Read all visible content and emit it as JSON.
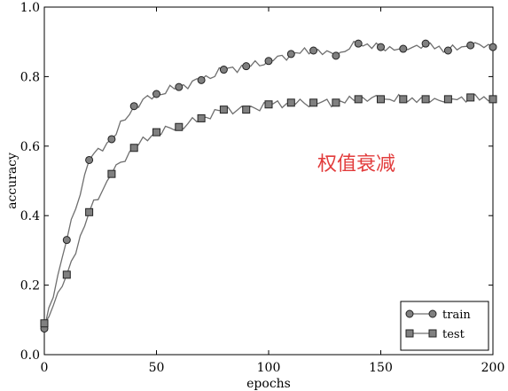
{
  "chart_data": {
    "type": "line",
    "xlabel": "epochs",
    "ylabel": "accuracy",
    "xlim": [
      0,
      200
    ],
    "ylim": [
      0.0,
      1.0
    ],
    "xticks": [
      "0",
      "50",
      "100",
      "150",
      "200"
    ],
    "yticks": [
      "0.0",
      "0.2",
      "0.4",
      "0.6",
      "0.8",
      "1.0"
    ],
    "grid": false,
    "legend_position": "bottom-right",
    "annotation": {
      "text": "权值衰减",
      "color": "#e23b3b"
    },
    "series": [
      {
        "name": "train",
        "marker": "circle",
        "line_color": "#6f6f6f",
        "marker_color": "#808080",
        "x": [
          0,
          10,
          20,
          30,
          40,
          50,
          60,
          70,
          80,
          90,
          100,
          110,
          120,
          130,
          140,
          150,
          160,
          170,
          180,
          190,
          200
        ],
        "y": [
          0.075,
          0.33,
          0.56,
          0.62,
          0.715,
          0.75,
          0.77,
          0.79,
          0.82,
          0.83,
          0.845,
          0.865,
          0.875,
          0.86,
          0.895,
          0.885,
          0.88,
          0.895,
          0.875,
          0.89,
          0.885
        ]
      },
      {
        "name": "test",
        "marker": "square",
        "line_color": "#6f6f6f",
        "marker_color": "#808080",
        "x": [
          0,
          10,
          20,
          30,
          40,
          50,
          60,
          70,
          80,
          90,
          100,
          110,
          120,
          130,
          140,
          150,
          160,
          170,
          180,
          190,
          200
        ],
        "y": [
          0.09,
          0.23,
          0.41,
          0.52,
          0.595,
          0.64,
          0.655,
          0.68,
          0.705,
          0.705,
          0.72,
          0.725,
          0.725,
          0.725,
          0.735,
          0.735,
          0.735,
          0.735,
          0.735,
          0.74,
          0.735
        ]
      }
    ]
  }
}
